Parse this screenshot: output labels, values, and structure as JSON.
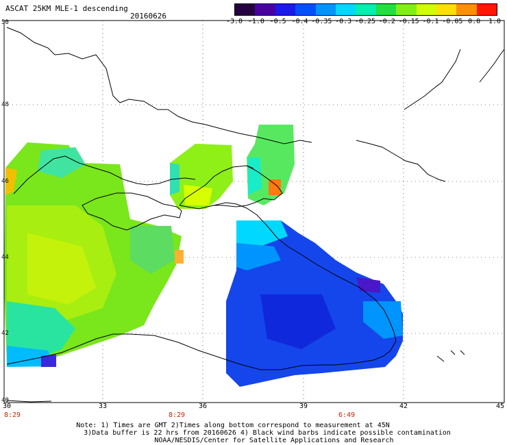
{
  "header": {
    "title": "ASCAT 25KM MLE-1 descending",
    "date": "20160626"
  },
  "colorbar": {
    "labels": [
      "-3.0",
      "-1.0",
      "-0.5",
      "-0.4",
      "-0.35",
      "-0.3",
      "-0.25",
      "-0.2",
      "-0.15",
      "-0.1",
      "-0.05",
      "0.0",
      "1.0"
    ],
    "colors": [
      "#250040",
      "#4a00a0",
      "#1a1aee",
      "#0050ff",
      "#0094ff",
      "#00d8ff",
      "#00f0b0",
      "#20e040",
      "#80f010",
      "#d0ff00",
      "#ffe000",
      "#ff9000",
      "#ff1800"
    ]
  },
  "axes": {
    "lat_labels": [
      "50",
      "48",
      "46",
      "44",
      "42",
      "40"
    ],
    "lon_labels": [
      "30",
      "33",
      "36",
      "39",
      "42",
      "45"
    ],
    "time_labels": [
      "8:29",
      "8:29",
      "6:49"
    ]
  },
  "notes": {
    "line1": "Note: 1) Times are GMT 2)Times along bottom correspond to measurement at 45N",
    "line2": "3)Data buffer is 22 hrs from 20160626 4) Black wind barbs indicate possible contamination",
    "line3": "NOAA/NESDIS/Center for Satellite Applications and Research"
  }
}
